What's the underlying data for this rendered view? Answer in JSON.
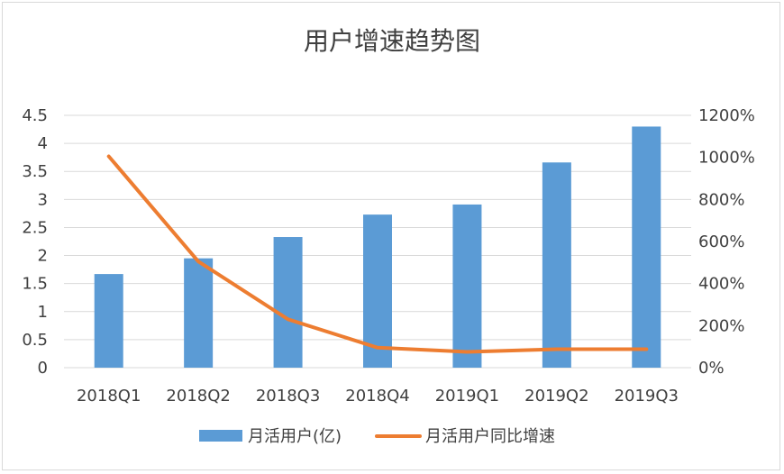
{
  "chart_data": {
    "type": "bar+line",
    "title": "用户增速趋势图",
    "categories": [
      "2018Q1",
      "2018Q2",
      "2018Q3",
      "2018Q4",
      "2019Q1",
      "2019Q2",
      "2019Q3"
    ],
    "series": [
      {
        "name": "月活用户(亿)",
        "type": "bar",
        "axis": "left",
        "color": "#5b9bd5",
        "values": [
          1.67,
          1.95,
          2.33,
          2.73,
          2.91,
          3.66,
          4.3
        ]
      },
      {
        "name": "月活用户同比增速",
        "type": "line",
        "axis": "right",
        "color": "#ed7d31",
        "values": [
          10.05,
          5.05,
          2.3,
          0.95,
          0.75,
          0.88,
          0.88
        ]
      }
    ],
    "y_left": {
      "ylim": [
        0,
        4.5
      ],
      "ticks": [
        0,
        0.5,
        1,
        1.5,
        2,
        2.5,
        3,
        3.5,
        4,
        4.5
      ],
      "tick_labels": [
        "0",
        "0.5",
        "1",
        "1.5",
        "2",
        "2.5",
        "3",
        "3.5",
        "4",
        "4.5"
      ]
    },
    "y_right": {
      "ylim": [
        0,
        12
      ],
      "ticks": [
        0,
        2,
        4,
        6,
        8,
        10,
        12
      ],
      "tick_labels": [
        "0%",
        "200%",
        "400%",
        "600%",
        "800%",
        "1000%",
        "1200%"
      ]
    },
    "grid": true,
    "legend_position": "bottom",
    "gridline_color": "#d9d9d9",
    "text_color": "#404040"
  }
}
